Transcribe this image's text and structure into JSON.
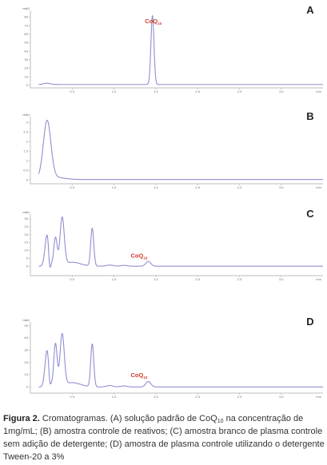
{
  "chart_data": [
    {
      "type": "line",
      "panel_label": "A",
      "unit": "mAU",
      "x_ticks": [
        "0.5",
        "1.0",
        "1.5",
        "2.0",
        "2.5",
        "3.0",
        "min"
      ],
      "y_ticks": [
        "0",
        "10",
        "20",
        "30",
        "40",
        "50",
        "60",
        "70",
        "80"
      ],
      "xlim": [
        0,
        3.5
      ],
      "ylim": [
        -3,
        88
      ],
      "annotations": [
        {
          "text": "CoQ",
          "sub": "10",
          "x": 1.47,
          "y": 73
        }
      ],
      "series": [
        {
          "baseline": 1.0,
          "peaks": [
            [
              0.2,
              1.5,
              0.04
            ],
            [
              1.46,
              81,
              0.018
            ]
          ]
        }
      ]
    },
    {
      "type": "line",
      "panel_label": "B",
      "unit": "mAU",
      "x_ticks": [
        "0.5",
        "1.0",
        "1.5",
        "2.0",
        "2.5",
        "3.0",
        "min"
      ],
      "y_ticks": [
        "0",
        "0.5",
        "1",
        "1.5",
        "2",
        "2.5",
        "3"
      ],
      "xlim": [
        0,
        3.5
      ],
      "ylim": [
        -0.2,
        3.3
      ],
      "annotations": [],
      "series": [
        {
          "baseline": 0.02,
          "peaks": [
            [
              0.2,
              3.0,
              0.045
            ],
            [
              0.28,
              0.12,
              0.12
            ]
          ]
        }
      ]
    },
    {
      "type": "line",
      "panel_label": "C",
      "unit": "mAU",
      "x_ticks": [
        "0.5",
        "1.0",
        "1.5",
        "2.0",
        "2.5",
        "3.0",
        "min"
      ],
      "y_ticks": [
        "0",
        "5",
        "10",
        "15",
        "20",
        "25",
        "30"
      ],
      "xlim": [
        0,
        3.5
      ],
      "ylim": [
        -6,
        33
      ],
      "annotations": [
        {
          "text": "CoQ",
          "sub": "10",
          "x": 1.3,
          "y": 5.5
        }
      ],
      "series": [
        {
          "baseline": 0,
          "peaks": [
            [
              0.2,
              20,
              0.025
            ],
            [
              0.23,
              -9,
              0.012
            ],
            [
              0.3,
              18,
              0.02
            ],
            [
              0.38,
              30,
              0.025
            ],
            [
              0.5,
              2.5,
              0.1
            ],
            [
              0.74,
              24,
              0.018
            ],
            [
              0.95,
              0.7,
              0.04
            ],
            [
              1.12,
              0.5,
              0.04
            ],
            [
              1.41,
              3,
              0.03
            ]
          ]
        }
      ]
    },
    {
      "type": "line",
      "panel_label": "D",
      "unit": "mAU",
      "x_ticks": [
        "0.5",
        "1.0",
        "1.5",
        "2.0",
        "2.5",
        "3.0",
        "min"
      ],
      "y_ticks": [
        "0",
        "10",
        "20",
        "30",
        "40",
        "50"
      ],
      "xlim": [
        0,
        3.5
      ],
      "ylim": [
        -5,
        53
      ],
      "annotations": [
        {
          "text": "CoQ",
          "sub": "10",
          "x": 1.3,
          "y": 8
        }
      ],
      "series": [
        {
          "baseline": 0,
          "peaks": [
            [
              0.2,
              30,
              0.025
            ],
            [
              0.23,
              -9,
              0.012
            ],
            [
              0.3,
              35,
              0.02
            ],
            [
              0.38,
              42,
              0.025
            ],
            [
              0.5,
              3.5,
              0.1
            ],
            [
              0.74,
              35,
              0.018
            ],
            [
              0.95,
              1.2,
              0.04
            ],
            [
              1.12,
              0.8,
              0.04
            ],
            [
              1.41,
              4.5,
              0.03
            ]
          ]
        }
      ]
    }
  ],
  "colors": {
    "trace": "#8f8fd2",
    "axis": "#a9a9a9",
    "annotation": "#d23a2a"
  },
  "caption": {
    "figure_label": "Figura 2.",
    "part1": " Cromatogramas. (A) solução padrão de CoQ",
    "sub": "10",
    "part2": " na concentração de 1mg/mL; (B) amostra controle de reativos; (C) amostra branco de plasma controle sem adição de detergente; (D) amostra de plasma controle utilizando o detergente Tween-20 a 3%"
  }
}
